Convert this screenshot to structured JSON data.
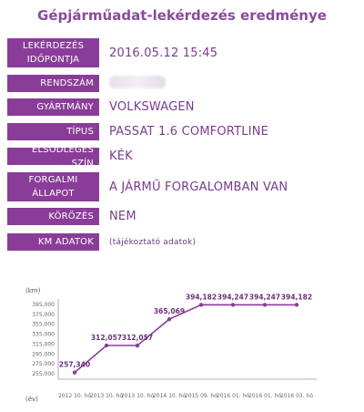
{
  "header": {
    "title": "Gépjárműadat-lekérdezés eredménye"
  },
  "rows": [
    {
      "label": "LEKÉRDEZÉS IDŐPONTJA",
      "label_lines": [
        "LEKÉRDEZÉS",
        "IDŐPONTJA"
      ],
      "value": "2016.05.12 15:45"
    },
    {
      "label": "RENDSZÁM",
      "value": ""
    },
    {
      "label": "GYÁRTMÁNY",
      "value": "VOLKSWAGEN"
    },
    {
      "label": "TÍPUS",
      "value": "PASSAT 1.6 COMFORTLINE"
    },
    {
      "label": "ELSŐDLEGES SZÍN",
      "value": "KÉK"
    },
    {
      "label": "FORGALMI ÁLLAPOT",
      "label_lines": [
        "FORGALMI",
        "ÁLLAPOT"
      ],
      "value": "A JÁRMŰ FORGALOMBAN VAN"
    },
    {
      "label": "KÖRÖZÉS",
      "value": "NEM"
    },
    {
      "label": "KM ADATOK",
      "value": "(tájékoztató adatok)"
    }
  ],
  "colors": {
    "accent": "#8a3d98",
    "text": "#7b3b8e"
  },
  "chart_data": {
    "type": "line",
    "ylabel": "(km)",
    "xlabel": "(év)",
    "yticks": [
      "395,000",
      "375,000",
      "355,000",
      "335,000",
      "315,000",
      "295,000",
      "275,000",
      "255,000"
    ],
    "ylim": [
      255000,
      395000
    ],
    "x": [
      "2012 10. hó",
      "2013 10. hó",
      "2013 10. hó",
      "2014 10. hó",
      "2015 09. hó",
      "2016 01. hó",
      "2016 01. hó",
      "2016 03. hó"
    ],
    "values": [
      257340,
      312057,
      312057,
      365069,
      394182,
      394247,
      394247,
      394182
    ],
    "labels": [
      "257,340",
      "312,057",
      "312,057",
      "365,069",
      "394,182",
      "394,247",
      "394,247",
      "394,182"
    ],
    "grid": false
  }
}
